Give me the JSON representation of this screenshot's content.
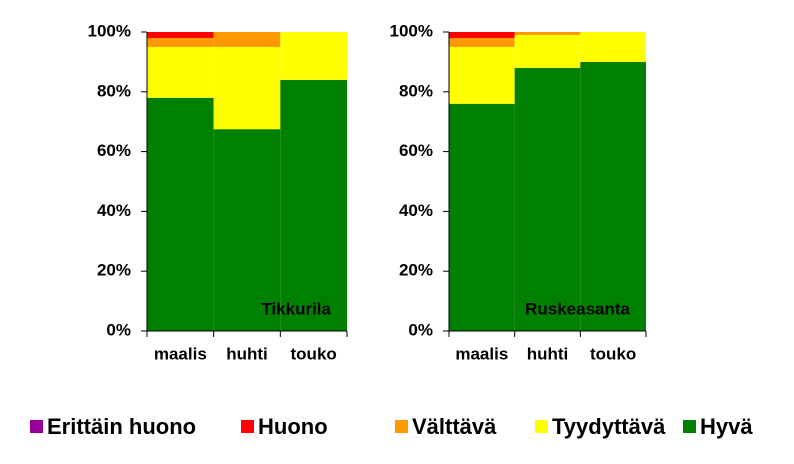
{
  "chart_data": [
    {
      "type": "stacked_bar",
      "annotation": "Tikkurila",
      "categories": [
        "maalis",
        "huhti",
        "touko"
      ],
      "series": [
        {
          "name": "Erittäin huono",
          "color": "#990099",
          "values": [
            0,
            0,
            0
          ]
        },
        {
          "name": "Huono",
          "color": "#ff0000",
          "values": [
            2,
            0,
            0
          ]
        },
        {
          "name": "Välttävä",
          "color": "#ff9900",
          "values": [
            3,
            5,
            0
          ]
        },
        {
          "name": "Tyydyttävä",
          "color": "#ffff00",
          "values": [
            17,
            27.5,
            16
          ]
        },
        {
          "name": "Hyvä",
          "color": "#008000",
          "values": [
            78,
            67.5,
            84
          ]
        }
      ],
      "ylim": [
        0,
        100
      ],
      "yticks": [
        {
          "value": 0,
          "label": "0%"
        },
        {
          "value": 20,
          "label": "20%"
        },
        {
          "value": 40,
          "label": "40%"
        },
        {
          "value": 60,
          "label": "60%"
        },
        {
          "value": 80,
          "label": "80%"
        },
        {
          "value": 100,
          "label": "100%"
        }
      ]
    },
    {
      "type": "stacked_bar",
      "annotation": "Ruskeasanta",
      "categories": [
        "maalis",
        "huhti",
        "touko"
      ],
      "series": [
        {
          "name": "Erittäin huono",
          "color": "#990099",
          "values": [
            0,
            0,
            0
          ]
        },
        {
          "name": "Huono",
          "color": "#ff0000",
          "values": [
            2,
            0,
            0
          ]
        },
        {
          "name": "Välttävä",
          "color": "#ff9900",
          "values": [
            3,
            1,
            0
          ]
        },
        {
          "name": "Tyydyttävä",
          "color": "#ffff00",
          "values": [
            19,
            11,
            10
          ]
        },
        {
          "name": "Hyvä",
          "color": "#008000",
          "values": [
            76,
            88,
            90
          ]
        }
      ],
      "ylim": [
        0,
        100
      ],
      "yticks": [
        {
          "value": 0,
          "label": "0%"
        },
        {
          "value": 20,
          "label": "20%"
        },
        {
          "value": 40,
          "label": "40%"
        },
        {
          "value": 60,
          "label": "60%"
        },
        {
          "value": 80,
          "label": "80%"
        },
        {
          "value": 100,
          "label": "100%"
        }
      ]
    }
  ]
}
